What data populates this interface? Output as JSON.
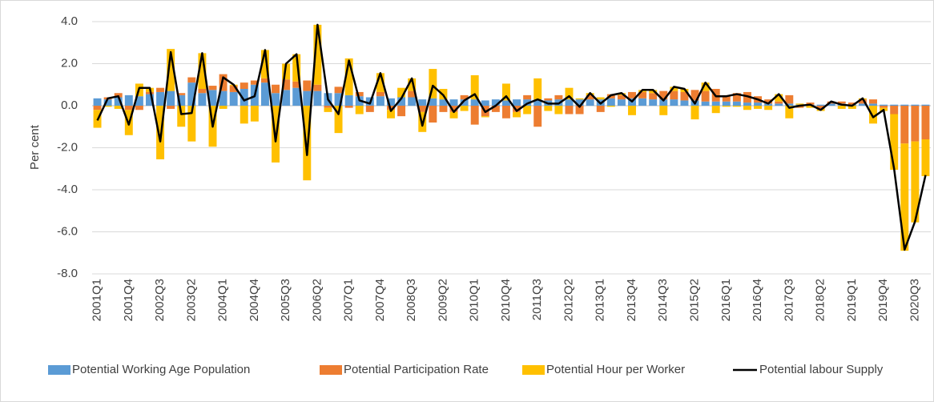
{
  "chart_data": {
    "type": "bar",
    "stacked": true,
    "y_label": "Per cent",
    "ylim": [
      -8,
      4
    ],
    "yticks": [
      {
        "value": -8,
        "label": "-8.0"
      },
      {
        "value": -6,
        "label": "-6.0"
      },
      {
        "value": -4,
        "label": "-4.0"
      },
      {
        "value": -2,
        "label": "-2.0"
      },
      {
        "value": 0,
        "label": "0.0"
      },
      {
        "value": 2,
        "label": "2.0"
      },
      {
        "value": 4,
        "label": "4.0"
      }
    ],
    "grid": true,
    "legend": "bottom",
    "categories": [
      "2001Q1",
      null,
      null,
      "2001Q4",
      null,
      null,
      "2002Q3",
      null,
      null,
      "2003Q2",
      null,
      null,
      "2004Q1",
      null,
      null,
      "2004Q4",
      null,
      null,
      "2005Q3",
      null,
      null,
      "2006Q2",
      null,
      null,
      "2007Q1",
      null,
      null,
      "2007Q4",
      null,
      null,
      "2008Q3",
      null,
      null,
      "2009Q2",
      null,
      null,
      "2010Q1",
      null,
      null,
      "2010Q4",
      null,
      null,
      "2011Q3",
      null,
      null,
      "2012Q2",
      null,
      null,
      "2013Q1",
      null,
      null,
      "2013Q4",
      null,
      null,
      "2014Q3",
      null,
      null,
      "2015Q2",
      null,
      null,
      "2016Q1",
      null,
      null,
      "2016Q4",
      null,
      null,
      "2017Q3",
      null,
      null,
      "2018Q2",
      null,
      null,
      "2019Q1",
      null,
      null,
      "2019Q4",
      null,
      null,
      "2020Q3",
      null
    ],
    "series": [
      {
        "name": "Potential Working Age Population",
        "type": "bar",
        "color": "#5b9bd5",
        "values": [
          0.35,
          0.3,
          0.4,
          0.5,
          0.45,
          0.55,
          0.65,
          0.7,
          0.5,
          1.1,
          0.6,
          0.75,
          0.7,
          0.65,
          0.8,
          1.0,
          1.1,
          0.6,
          0.75,
          0.85,
          0.7,
          0.7,
          0.6,
          0.6,
          0.5,
          0.45,
          0.4,
          0.45,
          0.35,
          0.4,
          0.4,
          0.3,
          0.35,
          0.3,
          0.3,
          0.3,
          0.3,
          0.25,
          0.3,
          0.25,
          0.3,
          0.3,
          0.3,
          0.25,
          0.3,
          0.3,
          0.3,
          0.3,
          0.3,
          0.35,
          0.3,
          0.35,
          0.35,
          0.3,
          0.3,
          0.3,
          0.25,
          0.25,
          0.2,
          0.2,
          0.2,
          0.2,
          0.15,
          0.15,
          0.1,
          0.1,
          0.1,
          0.05,
          0.05,
          0.05,
          0.1,
          0.1,
          0.05,
          0.1,
          0.1,
          0.05,
          0.05,
          0.05,
          0.05,
          0.05
        ]
      },
      {
        "name": "Potential Participation Rate",
        "type": "bar",
        "color": "#ed7d31",
        "values": [
          -0.2,
          0.1,
          0.2,
          -0.2,
          -0.2,
          0.1,
          0.2,
          -0.15,
          0.1,
          0.25,
          0.2,
          0.2,
          0.8,
          0.3,
          0.3,
          0.2,
          0.2,
          0.4,
          0.5,
          0.3,
          0.5,
          0.3,
          -0.1,
          0.3,
          -0.1,
          0.2,
          -0.3,
          0.2,
          -0.2,
          -0.5,
          0.3,
          -0.3,
          -0.8,
          -0.3,
          -0.3,
          0.2,
          -0.9,
          -0.5,
          -0.3,
          -0.6,
          -0.3,
          0.2,
          -1.0,
          0.1,
          0.2,
          -0.4,
          -0.4,
          0.2,
          -0.3,
          0.2,
          0.2,
          0.3,
          0.3,
          0.3,
          0.4,
          0.4,
          0.4,
          0.5,
          0.5,
          0.6,
          0.3,
          0.4,
          0.5,
          0.3,
          0.2,
          0.1,
          0.4,
          -0.1,
          0.1,
          -0.15,
          0.1,
          0.1,
          0.1,
          0.2,
          0.2,
          -0.1,
          -0.4,
          -1.8,
          -1.7,
          -1.6
        ]
      },
      {
        "name": "Potential Hour per Worker",
        "type": "bar",
        "color": "#ffc000",
        "values": [
          -0.85,
          -0.05,
          -0.15,
          -1.2,
          0.6,
          0.2,
          -2.55,
          2.0,
          -1.0,
          -1.7,
          1.7,
          -1.95,
          -0.15,
          0.05,
          -0.85,
          -0.75,
          1.35,
          -2.7,
          0.75,
          1.3,
          -3.55,
          2.85,
          -0.2,
          -1.3,
          1.75,
          -0.4,
          0,
          0.9,
          -0.4,
          0.45,
          0.6,
          -0.95,
          1.4,
          0.5,
          -0.3,
          -0.25,
          1.15,
          -0.05,
          0,
          0.8,
          -0.25,
          -0.4,
          1.0,
          -0.25,
          -0.4,
          0.55,
          0.05,
          0.1,
          0.1,
          -0.05,
          0.1,
          -0.45,
          0.1,
          0.15,
          -0.45,
          0.2,
          0.15,
          -0.65,
          0.4,
          -0.35,
          -0.05,
          -0.05,
          -0.2,
          -0.15,
          -0.2,
          0.35,
          -0.6,
          0.05,
          -0.1,
          -0.1,
          0,
          -0.15,
          -0.15,
          0.05,
          -0.85,
          -0.15,
          -2.65,
          -5.1,
          -3.85,
          -1.75
        ]
      },
      {
        "name": "Potential labour Supply",
        "type": "line",
        "color": "#000000",
        "values": [
          -0.7,
          0.35,
          0.45,
          -0.9,
          0.85,
          0.85,
          -1.7,
          2.55,
          -0.4,
          -0.35,
          2.5,
          -1.0,
          1.35,
          1.0,
          0.25,
          0.45,
          2.65,
          -1.7,
          2.0,
          2.45,
          -2.35,
          3.85,
          0.3,
          -0.4,
          2.15,
          0.25,
          0.1,
          1.55,
          -0.25,
          0.35,
          1.3,
          -0.95,
          0.95,
          0.5,
          -0.3,
          0.25,
          0.55,
          -0.3,
          0.0,
          0.45,
          -0.25,
          0.1,
          0.3,
          0.1,
          0.1,
          0.45,
          -0.05,
          0.6,
          0.1,
          0.5,
          0.6,
          0.2,
          0.75,
          0.75,
          0.25,
          0.9,
          0.8,
          0.1,
          1.1,
          0.45,
          0.45,
          0.55,
          0.45,
          0.3,
          0.1,
          0.55,
          -0.1,
          0.0,
          0.05,
          -0.2,
          0.2,
          0.05,
          0.0,
          0.35,
          -0.55,
          -0.2,
          -3.0,
          -6.85,
          -5.5,
          -3.3
        ]
      }
    ]
  }
}
